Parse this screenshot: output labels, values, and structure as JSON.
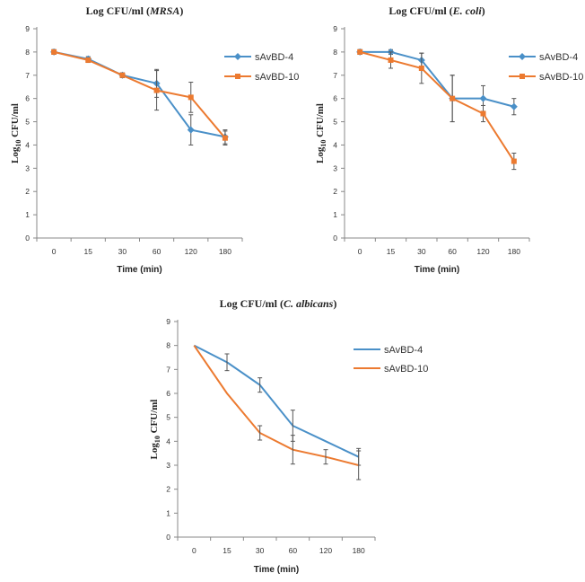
{
  "chart_data": [
    {
      "type": "line",
      "title_prefix": "Log CFU/ml (",
      "title_organism": "MRSA",
      "title_suffix": ")",
      "xlabel": "Time (min)",
      "ylabel_base": "Log",
      "ylabel_sub": "10",
      "ylabel_rest": " CFU/ml",
      "categories": [
        "0",
        "15",
        "30",
        "60",
        "120",
        "180"
      ],
      "yticks": [
        "0",
        "1",
        "2",
        "3",
        "4",
        "5",
        "6",
        "7",
        "8",
        "9"
      ],
      "ylim": [
        0,
        9
      ],
      "markers": true,
      "series": [
        {
          "name": "sAvBD-4",
          "color": "#4a90c8",
          "values": [
            8.0,
            7.7,
            7.0,
            6.65,
            4.65,
            4.35
          ],
          "errors": [
            0.1,
            0.1,
            0.1,
            0.6,
            0.65,
            0.3
          ]
        },
        {
          "name": "sAvBD-10",
          "color": "#ec7a30",
          "values": [
            8.0,
            7.65,
            7.0,
            6.35,
            6.05,
            4.3
          ],
          "errors": [
            0.1,
            0.1,
            0.1,
            0.85,
            0.65,
            0.3
          ]
        }
      ]
    },
    {
      "type": "line",
      "title_prefix": "Log CFU/ml (",
      "title_organism": "E. coli",
      "title_suffix": ")",
      "xlabel": "Time (min)",
      "ylabel_base": "Log",
      "ylabel_sub": "10",
      "ylabel_rest": " CFU/ml",
      "categories": [
        "0",
        "15",
        "30",
        "60",
        "120",
        "180"
      ],
      "yticks": [
        "0",
        "1",
        "2",
        "3",
        "4",
        "5",
        "6",
        "7",
        "8",
        "9"
      ],
      "ylim": [
        0,
        9
      ],
      "markers": true,
      "series": [
        {
          "name": "sAvBD-4",
          "color": "#4a90c8",
          "values": [
            8.0,
            8.0,
            7.65,
            6.0,
            6.0,
            5.65
          ],
          "errors": [
            0.1,
            0.1,
            0.3,
            1.0,
            0.55,
            0.35
          ]
        },
        {
          "name": "sAvBD-10",
          "color": "#ec7a30",
          "values": [
            8.0,
            7.65,
            7.3,
            6.0,
            5.35,
            3.3
          ],
          "errors": [
            0.1,
            0.35,
            0.65,
            1.0,
            0.35,
            0.35
          ]
        }
      ]
    },
    {
      "type": "line",
      "title_prefix": "Log CFU/ml (",
      "title_organism": "C. albicans",
      "title_suffix": ")",
      "xlabel": "Time (min)",
      "ylabel_base": "Log",
      "ylabel_sub": "10",
      "ylabel_rest": " CFU/ml",
      "categories": [
        "0",
        "15",
        "30",
        "60",
        "120",
        "180"
      ],
      "yticks": [
        "0",
        "1",
        "2",
        "3",
        "4",
        "5",
        "6",
        "7",
        "8",
        "9"
      ],
      "ylim": [
        0,
        9
      ],
      "markers": false,
      "series": [
        {
          "name": "sAvBD-4",
          "color": "#4a90c8",
          "values": [
            8.0,
            7.3,
            6.35,
            4.65,
            4.0,
            3.35
          ],
          "errors": [
            0,
            0.35,
            0.3,
            0.65,
            0,
            0.35
          ]
        },
        {
          "name": "sAvBD-10",
          "color": "#ec7a30",
          "values": [
            8.0,
            6.0,
            4.35,
            3.65,
            3.35,
            3.0
          ],
          "errors": [
            0,
            0,
            0.3,
            0.6,
            0.3,
            0.6
          ]
        }
      ]
    }
  ]
}
